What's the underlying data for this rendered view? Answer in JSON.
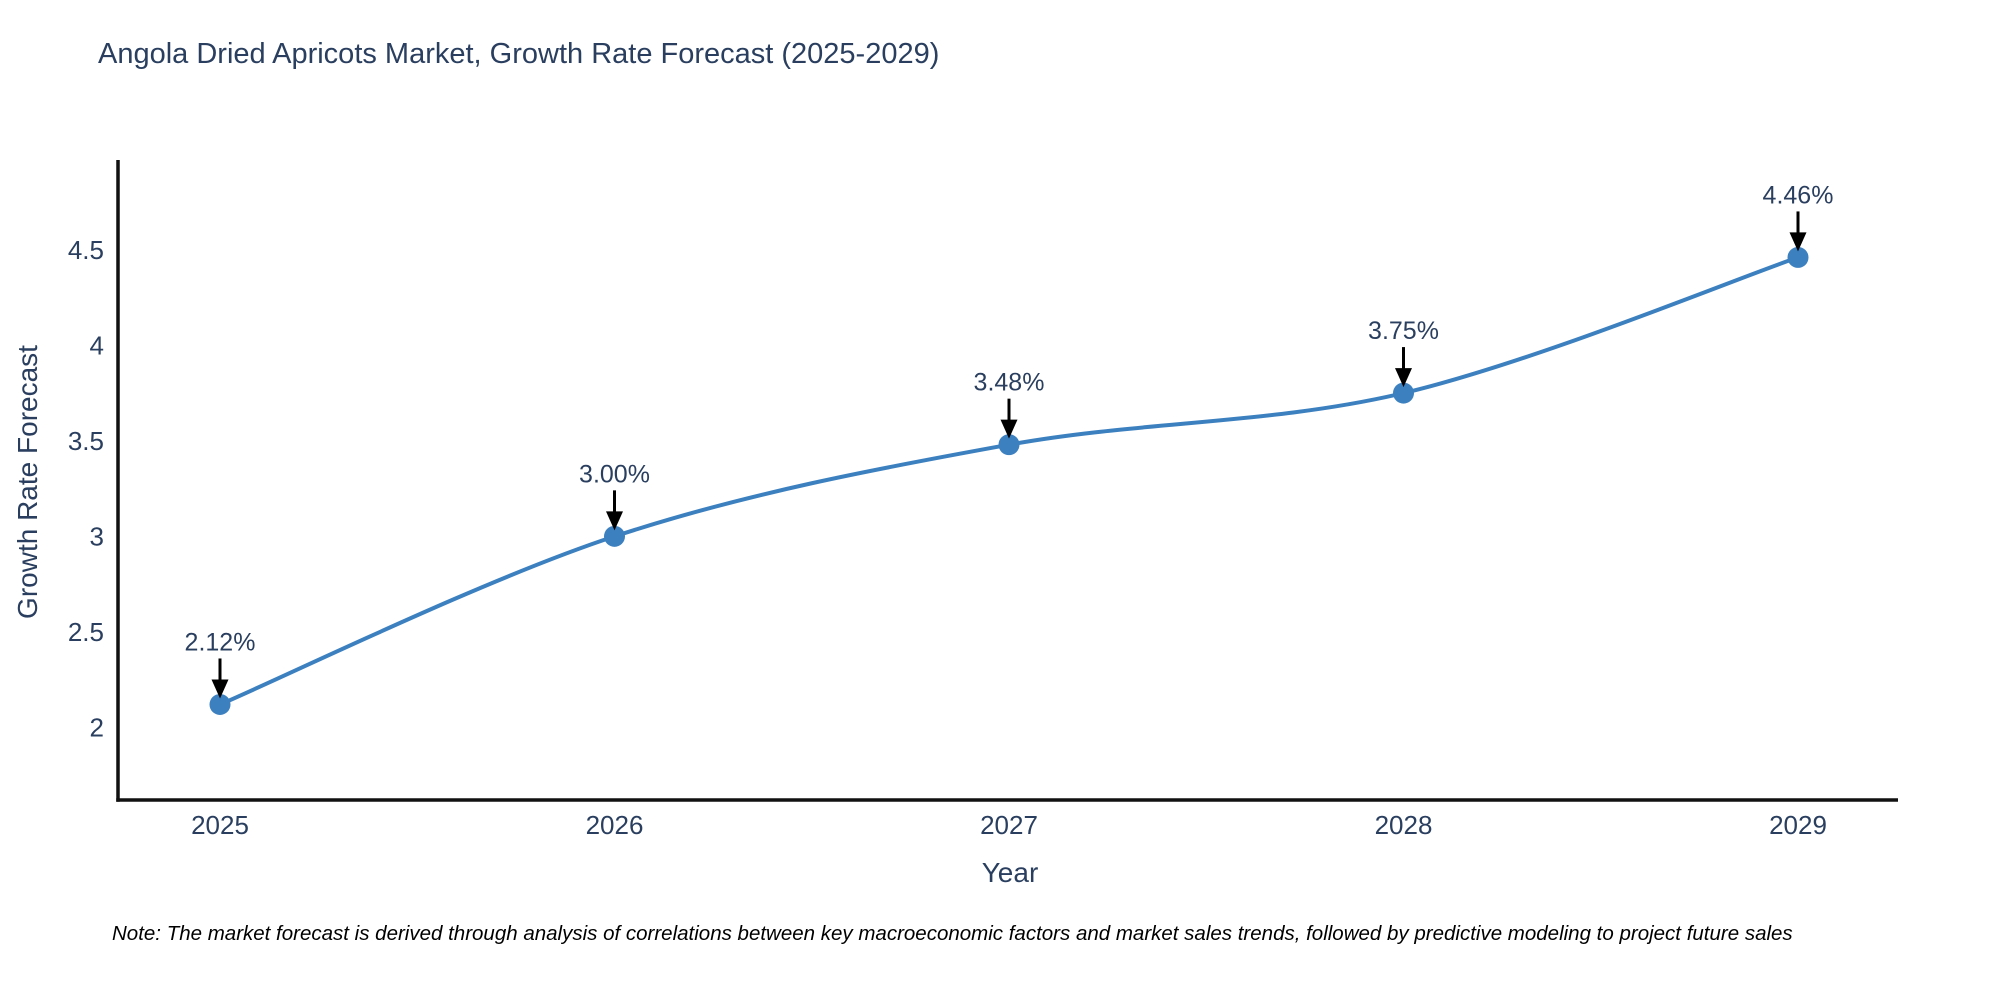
{
  "title": "Angola Dried Apricots Market, Growth Rate Forecast (2025-2029)",
  "chart_data": {
    "type": "line",
    "title": "Angola Dried Apricots Market, Growth Rate Forecast (2025-2029)",
    "xlabel": "Year",
    "ylabel": "Growth Rate Forecast",
    "x": [
      "2025",
      "2026",
      "2027",
      "2028",
      "2029"
    ],
    "series": [
      {
        "name": "Growth Rate Forecast",
        "values": [
          2.12,
          3.0,
          3.48,
          3.75,
          4.46
        ]
      }
    ],
    "point_labels": [
      "2.12%",
      "3.00%",
      "3.48%",
      "3.75%",
      "4.46%"
    ],
    "y_ticks": [
      "2",
      "2.5",
      "3",
      "3.5",
      "4",
      "4.5"
    ],
    "y_tick_values": [
      2,
      2.5,
      3,
      3.5,
      4,
      4.5
    ],
    "ylim": [
      1.62,
      4.97
    ],
    "grid": false,
    "legend": "none",
    "line_shape": "spline",
    "marker_style": "circle",
    "annotation_arrows": true
  },
  "colors": {
    "line": "#3c80c0",
    "marker": "#3c80c0",
    "axis": "#111111",
    "text": "#2a3f5f",
    "arrow": "#000000",
    "background": "#ffffff"
  },
  "note": "Note: The market forecast is derived through analysis of correlations between key macroeconomic factors and market sales trends, followed by predictive modeling to project future sales"
}
